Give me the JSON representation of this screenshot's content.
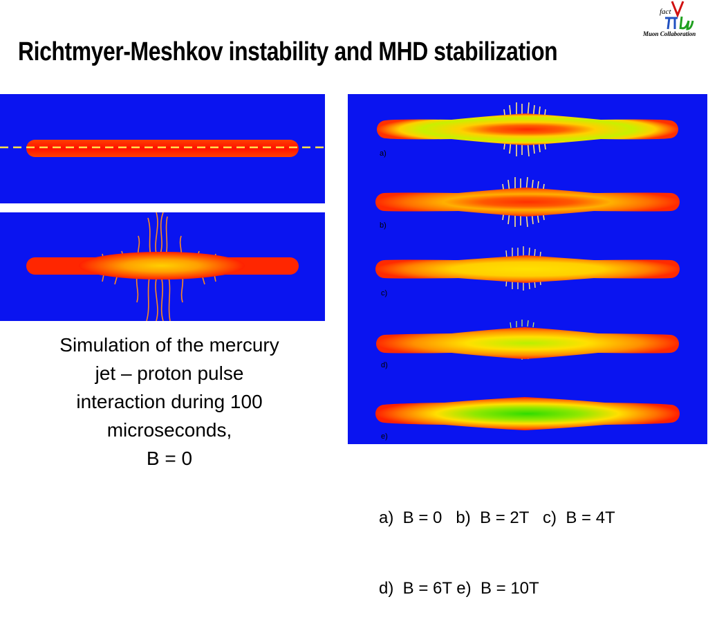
{
  "slide": {
    "title": "Richtmyer-Meshkov instability and MHD stabilization"
  },
  "logo": {
    "caption": "Muon Collaboration",
    "mark_text": "fact"
  },
  "left_caption": {
    "lines": [
      "Simulation of the mercury",
      "jet – proton pulse",
      "interaction during  100",
      "microseconds,",
      "B = 0"
    ]
  },
  "right_panel": {
    "labels": [
      "a)",
      "b)",
      "c)",
      "d)",
      "e)"
    ]
  },
  "right_caption": {
    "lines": [
      "a)  B = 0   b)  B = 2T   c)  B = 4T",
      "d)  B = 6T e)  B = 10T"
    ]
  },
  "colors": {
    "background_blue": "#0a14f0",
    "jet_red": "#ff1a00",
    "jet_yellow": "#ffd800",
    "jet_green": "#3cdc00",
    "beam_line": "#ffe14d"
  }
}
